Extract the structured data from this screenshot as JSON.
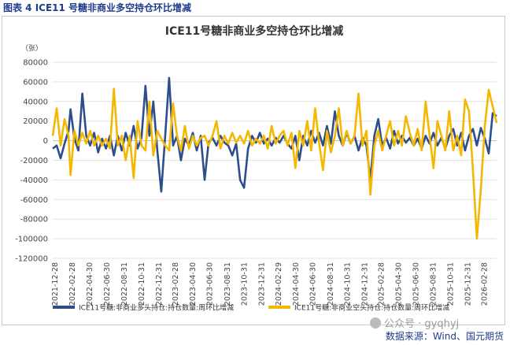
{
  "figure_label": "图表 4  ICE11 号糖非商业多空持仓环比增减",
  "source": "数据来源：Wind、国元期货",
  "watermark": "公众号 · gyqhyj",
  "colors": {
    "long": "#2e4e8b",
    "short": "#f5b800",
    "grid": "#e3e3e3",
    "axis_text": "#444444"
  },
  "chart_data": {
    "type": "line",
    "title": "ICE11号糖非商业多空持仓环比增减",
    "ylabel": "（张）",
    "xlabel": "",
    "ylim": [
      -120000,
      80000
    ],
    "yticks": [
      80000,
      60000,
      40000,
      20000,
      0,
      -20000,
      -40000,
      -60000,
      -80000,
      -100000,
      -120000
    ],
    "x_range": [
      "2021-12-21",
      "2026-04-14"
    ],
    "x_tick_labels": [
      "2021-12-28",
      "2022-02-28",
      "2022-04-30",
      "2022-06-30",
      "2022-08-31",
      "2022-10-31",
      "2022-12-31",
      "2023-02-28",
      "2023-04-30",
      "2023-06-30",
      "2023-08-31",
      "2023-10-31",
      "2023-12-31",
      "2024-02-29",
      "2024-04-30",
      "2024-06-30",
      "2024-08-31",
      "2024-10-31",
      "2024-12-31",
      "2025-02-28",
      "2025-04-30",
      "2025-06-30",
      "2025-08-31",
      "2025-10-31",
      "2025-12-31",
      "2026-02-28"
    ],
    "legend_position": "bottom",
    "grid": true,
    "series": [
      {
        "name": "ICE11号糖:非商业多头持仓:持仓数量:周环比增减",
        "color": "#2e4e8b",
        "points": [
          [
            "2021-12-21",
            -8000
          ],
          [
            "2022-01-04",
            -5000
          ],
          [
            "2022-01-18",
            -18000
          ],
          [
            "2022-02-01",
            -3000
          ],
          [
            "2022-02-15",
            10000
          ],
          [
            "2022-02-22",
            32000
          ],
          [
            "2022-03-08",
            2000
          ],
          [
            "2022-03-22",
            -10000
          ],
          [
            "2022-04-05",
            48000
          ],
          [
            "2022-04-19",
            5000
          ],
          [
            "2022-05-03",
            -5000
          ],
          [
            "2022-05-17",
            8000
          ],
          [
            "2022-05-31",
            -12000
          ],
          [
            "2022-06-14",
            2000
          ],
          [
            "2022-06-28",
            -8000
          ],
          [
            "2022-07-12",
            5000
          ],
          [
            "2022-07-26",
            -15000
          ],
          [
            "2022-08-09",
            5000
          ],
          [
            "2022-08-23",
            -10000
          ],
          [
            "2022-09-06",
            8000
          ],
          [
            "2022-09-20",
            -5000
          ],
          [
            "2022-10-04",
            15000
          ],
          [
            "2022-10-18",
            -8000
          ],
          [
            "2022-11-01",
            3000
          ],
          [
            "2022-11-15",
            56000
          ],
          [
            "2022-11-29",
            5000
          ],
          [
            "2022-12-13",
            40000
          ],
          [
            "2022-12-27",
            -10000
          ],
          [
            "2023-01-10",
            -52000
          ],
          [
            "2023-01-24",
            5000
          ],
          [
            "2023-02-07",
            64000
          ],
          [
            "2023-02-21",
            -5000
          ],
          [
            "2023-03-07",
            5000
          ],
          [
            "2023-03-21",
            -20000
          ],
          [
            "2023-04-04",
            2000
          ],
          [
            "2023-04-18",
            -5000
          ],
          [
            "2023-05-02",
            8000
          ],
          [
            "2023-05-16",
            -10000
          ],
          [
            "2023-05-30",
            5000
          ],
          [
            "2023-06-13",
            -40000
          ],
          [
            "2023-06-27",
            -2000
          ],
          [
            "2023-07-11",
            3000
          ],
          [
            "2023-07-25",
            -5000
          ],
          [
            "2023-08-08",
            5000
          ],
          [
            "2023-08-22",
            -2000
          ],
          [
            "2023-09-05",
            -5000
          ],
          [
            "2023-09-19",
            -15000
          ],
          [
            "2023-10-03",
            -3000
          ],
          [
            "2023-10-17",
            -40000
          ],
          [
            "2023-10-31",
            -48000
          ],
          [
            "2023-11-14",
            -8000
          ],
          [
            "2023-11-28",
            5000
          ],
          [
            "2023-12-12",
            -2000
          ],
          [
            "2023-12-26",
            8000
          ],
          [
            "2024-01-09",
            -3000
          ],
          [
            "2024-01-23",
            2000
          ],
          [
            "2024-02-06",
            -5000
          ],
          [
            "2024-02-20",
            3000
          ],
          [
            "2024-03-05",
            -2000
          ],
          [
            "2024-03-19",
            5000
          ],
          [
            "2024-04-02",
            -3000
          ],
          [
            "2024-04-16",
            -8000
          ],
          [
            "2024-04-30",
            5000
          ],
          [
            "2024-05-14",
            -20000
          ],
          [
            "2024-05-28",
            5000
          ],
          [
            "2024-06-11",
            -5000
          ],
          [
            "2024-06-25",
            10000
          ],
          [
            "2024-07-09",
            -2000
          ],
          [
            "2024-07-23",
            8000
          ],
          [
            "2024-08-06",
            -5000
          ],
          [
            "2024-08-20",
            15000
          ],
          [
            "2024-09-03",
            -3000
          ],
          [
            "2024-09-17",
            30000
          ],
          [
            "2024-10-01",
            5000
          ],
          [
            "2024-10-15",
            -5000
          ],
          [
            "2024-10-29",
            8000
          ],
          [
            "2024-11-12",
            -3000
          ],
          [
            "2024-11-26",
            5000
          ],
          [
            "2024-12-10",
            -10000
          ],
          [
            "2024-12-24",
            3000
          ],
          [
            "2025-01-07",
            -5000
          ],
          [
            "2025-01-21",
            -40000
          ],
          [
            "2025-02-04",
            5000
          ],
          [
            "2025-02-18",
            22000
          ],
          [
            "2025-03-04",
            -5000
          ],
          [
            "2025-03-18",
            3000
          ],
          [
            "2025-04-01",
            -8000
          ],
          [
            "2025-04-15",
            10000
          ],
          [
            "2025-04-29",
            -3000
          ],
          [
            "2025-05-13",
            5000
          ],
          [
            "2025-05-27",
            -2000
          ],
          [
            "2025-06-10",
            3000
          ],
          [
            "2025-06-24",
            -5000
          ],
          [
            "2025-07-08",
            2000
          ],
          [
            "2025-07-22",
            -8000
          ],
          [
            "2025-08-05",
            5000
          ],
          [
            "2025-08-19",
            -3000
          ],
          [
            "2025-09-02",
            8000
          ],
          [
            "2025-09-16",
            -5000
          ],
          [
            "2025-09-30",
            3000
          ],
          [
            "2025-10-14",
            -8000
          ],
          [
            "2025-10-28",
            5000
          ],
          [
            "2025-11-11",
            12000
          ],
          [
            "2025-11-25",
            -5000
          ],
          [
            "2025-12-09",
            8000
          ],
          [
            "2025-12-23",
            -10000
          ],
          [
            "2026-01-06",
            5000
          ],
          [
            "2026-01-20",
            12000
          ],
          [
            "2026-02-03",
            -5000
          ],
          [
            "2026-02-17",
            13000
          ],
          [
            "2026-03-03",
            2000
          ],
          [
            "2026-03-17",
            -13000
          ],
          [
            "2026-03-31",
            28000
          ],
          [
            "2026-04-14",
            25000
          ]
        ]
      },
      {
        "name": "ICE11号糖:非商业空头持仓:持仓数量:周环比增减",
        "color": "#f5b800",
        "points": [
          [
            "2021-12-21",
            5000
          ],
          [
            "2022-01-04",
            33000
          ],
          [
            "2022-01-18",
            -5000
          ],
          [
            "2022-02-01",
            22000
          ],
          [
            "2022-02-15",
            5000
          ],
          [
            "2022-02-22",
            -35000
          ],
          [
            "2022-03-08",
            10000
          ],
          [
            "2022-03-22",
            -5000
          ],
          [
            "2022-04-05",
            8000
          ],
          [
            "2022-04-19",
            -3000
          ],
          [
            "2022-05-03",
            10000
          ],
          [
            "2022-05-17",
            -5000
          ],
          [
            "2022-05-31",
            5000
          ],
          [
            "2022-06-14",
            -5000
          ],
          [
            "2022-06-28",
            2000
          ],
          [
            "2022-07-12",
            -8000
          ],
          [
            "2022-07-26",
            53000
          ],
          [
            "2022-08-09",
            -5000
          ],
          [
            "2022-08-23",
            5000
          ],
          [
            "2022-09-06",
            -20000
          ],
          [
            "2022-09-20",
            5000
          ],
          [
            "2022-10-04",
            -38000
          ],
          [
            "2022-10-18",
            20000
          ],
          [
            "2022-11-01",
            -5000
          ],
          [
            "2022-11-15",
            -10000
          ],
          [
            "2022-11-29",
            40000
          ],
          [
            "2022-12-13",
            -15000
          ],
          [
            "2022-12-27",
            10000
          ],
          [
            "2023-01-10",
            2000
          ],
          [
            "2023-01-24",
            -5000
          ],
          [
            "2023-02-07",
            -10000
          ],
          [
            "2023-02-21",
            38000
          ],
          [
            "2023-03-07",
            5000
          ],
          [
            "2023-03-21",
            -10000
          ],
          [
            "2023-04-04",
            15000
          ],
          [
            "2023-04-18",
            -8000
          ],
          [
            "2023-05-02",
            5000
          ],
          [
            "2023-05-16",
            -5000
          ],
          [
            "2023-05-30",
            3000
          ],
          [
            "2023-06-13",
            5000
          ],
          [
            "2023-06-27",
            -5000
          ],
          [
            "2023-07-11",
            5000
          ],
          [
            "2023-07-25",
            20000
          ],
          [
            "2023-08-08",
            -8000
          ],
          [
            "2023-08-22",
            5000
          ],
          [
            "2023-09-05",
            -3000
          ],
          [
            "2023-09-19",
            8000
          ],
          [
            "2023-10-03",
            -2000
          ],
          [
            "2023-10-17",
            5000
          ],
          [
            "2023-10-31",
            -3000
          ],
          [
            "2023-11-14",
            10000
          ],
          [
            "2023-11-28",
            -5000
          ],
          [
            "2023-12-12",
            2000
          ],
          [
            "2023-12-26",
            -3000
          ],
          [
            "2024-01-09",
            5000
          ],
          [
            "2024-01-23",
            -8000
          ],
          [
            "2024-02-06",
            15000
          ],
          [
            "2024-02-20",
            -3000
          ],
          [
            "2024-03-05",
            5000
          ],
          [
            "2024-03-19",
            10000
          ],
          [
            "2024-04-02",
            -5000
          ],
          [
            "2024-04-16",
            8000
          ],
          [
            "2024-04-30",
            -28000
          ],
          [
            "2024-05-14",
            10000
          ],
          [
            "2024-05-28",
            -5000
          ],
          [
            "2024-06-11",
            20000
          ],
          [
            "2024-06-25",
            -10000
          ],
          [
            "2024-07-09",
            33000
          ],
          [
            "2024-07-23",
            -2000
          ],
          [
            "2024-08-06",
            -30000
          ],
          [
            "2024-08-20",
            10000
          ],
          [
            "2024-09-03",
            -12000
          ],
          [
            "2024-09-17",
            5000
          ],
          [
            "2024-10-01",
            33000
          ],
          [
            "2024-10-15",
            -5000
          ],
          [
            "2024-10-29",
            10000
          ],
          [
            "2024-11-12",
            -3000
          ],
          [
            "2024-11-26",
            5000
          ],
          [
            "2024-12-10",
            48000
          ],
          [
            "2024-12-24",
            -5000
          ],
          [
            "2025-01-07",
            10000
          ],
          [
            "2025-01-21",
            -55000
          ],
          [
            "2025-02-04",
            -5000
          ],
          [
            "2025-02-18",
            10000
          ],
          [
            "2025-03-04",
            -10000
          ],
          [
            "2025-03-18",
            5000
          ],
          [
            "2025-04-01",
            20000
          ],
          [
            "2025-04-15",
            -5000
          ],
          [
            "2025-04-29",
            10000
          ],
          [
            "2025-05-13",
            -5000
          ],
          [
            "2025-05-27",
            25000
          ],
          [
            "2025-06-10",
            8000
          ],
          [
            "2025-06-24",
            -5000
          ],
          [
            "2025-07-08",
            12000
          ],
          [
            "2025-07-22",
            -10000
          ],
          [
            "2025-08-05",
            40000
          ],
          [
            "2025-08-19",
            5000
          ],
          [
            "2025-09-02",
            -28000
          ],
          [
            "2025-09-16",
            20000
          ],
          [
            "2025-09-30",
            5000
          ],
          [
            "2025-10-14",
            -10000
          ],
          [
            "2025-10-28",
            30000
          ],
          [
            "2025-11-11",
            -10000
          ],
          [
            "2025-11-25",
            5000
          ],
          [
            "2025-12-09",
            -15000
          ],
          [
            "2025-12-23",
            42000
          ],
          [
            "2026-01-06",
            30000
          ],
          [
            "2026-01-20",
            -30000
          ],
          [
            "2026-02-03",
            -100000
          ],
          [
            "2026-02-17",
            -50000
          ],
          [
            "2026-03-03",
            15000
          ],
          [
            "2026-03-17",
            52000
          ],
          [
            "2026-03-31",
            35000
          ],
          [
            "2026-04-14",
            18000
          ]
        ]
      }
    ]
  }
}
